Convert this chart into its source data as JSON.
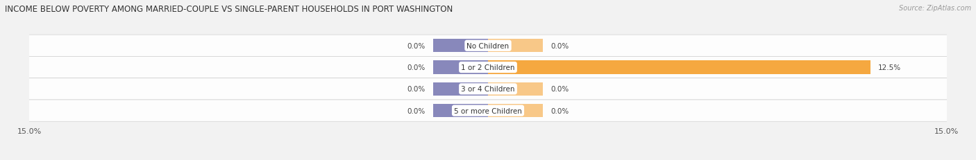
{
  "title": "INCOME BELOW POVERTY AMONG MARRIED-COUPLE VS SINGLE-PARENT HOUSEHOLDS IN PORT WASHINGTON",
  "source": "Source: ZipAtlas.com",
  "categories": [
    "No Children",
    "1 or 2 Children",
    "3 or 4 Children",
    "5 or more Children"
  ],
  "married_values": [
    0.0,
    0.0,
    0.0,
    0.0
  ],
  "single_values": [
    0.0,
    12.5,
    0.0,
    0.0
  ],
  "xlim": [
    -15.0,
    15.0
  ],
  "xtick_left_label": "15.0%",
  "xtick_right_label": "15.0%",
  "married_color": "#8888bb",
  "single_color": "#f5a840",
  "single_color_light": "#f8c888",
  "bar_height": 0.62,
  "min_bar_width": 1.8,
  "background_color": "#f2f2f2",
  "row_bg_color": "#e8e8e8",
  "row_bg_alpha": 0.9,
  "title_fontsize": 8.5,
  "label_fontsize": 7.5,
  "value_fontsize": 7.5,
  "tick_fontsize": 8,
  "source_fontsize": 7.0,
  "legend_fontsize": 8.0
}
